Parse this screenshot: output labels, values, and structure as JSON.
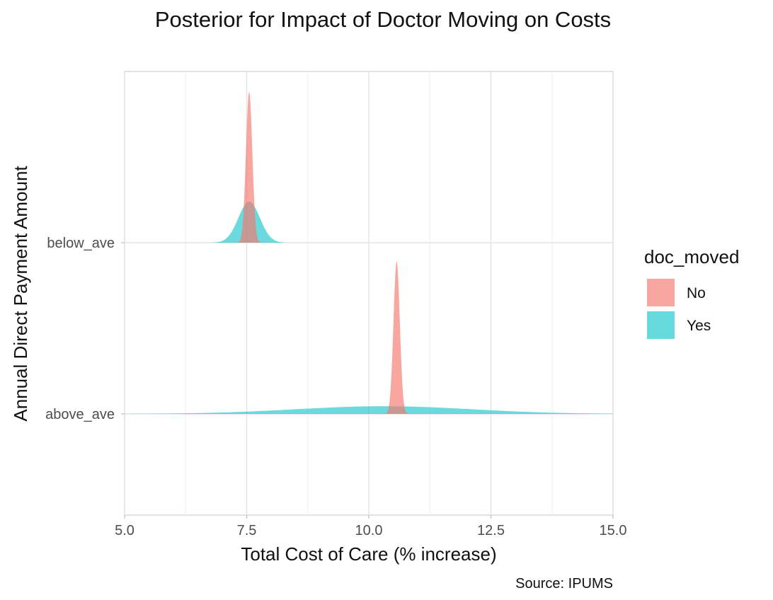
{
  "chart_data": {
    "type": "ridgeline-density",
    "title": "Posterior for Impact of Doctor Moving on Costs",
    "xlabel": "Total Cost of Care (% increase)",
    "ylabel": "Annual Direct Payment Amount",
    "caption": "Source: IPUMS",
    "xlim": [
      5.0,
      15.0
    ],
    "x_ticks": [
      "5.0",
      "7.5",
      "10.0",
      "12.5",
      "15.0"
    ],
    "x_tick_values": [
      5.0,
      7.5,
      10.0,
      12.5,
      15.0
    ],
    "categories": [
      "below_ave",
      "above_ave"
    ],
    "grid": true,
    "legend": {
      "title": "doc_moved",
      "position": "right",
      "entries": [
        {
          "label": "No",
          "color": "#F8766D"
        },
        {
          "label": "Yes",
          "color": "#00BFC4"
        }
      ]
    },
    "series": [
      {
        "name": "No",
        "category": "below_ave",
        "mean": 7.55,
        "sd": 0.065,
        "relative_height": 0.88
      },
      {
        "name": "Yes",
        "category": "below_ave",
        "mean": 7.55,
        "sd": 0.22,
        "relative_height": 0.24
      },
      {
        "name": "No",
        "category": "above_ave",
        "mean": 10.57,
        "sd": 0.065,
        "relative_height": 0.89
      },
      {
        "name": "Yes",
        "category": "above_ave",
        "mean": 10.3,
        "sd": 1.8,
        "relative_height": 0.045
      }
    ]
  }
}
